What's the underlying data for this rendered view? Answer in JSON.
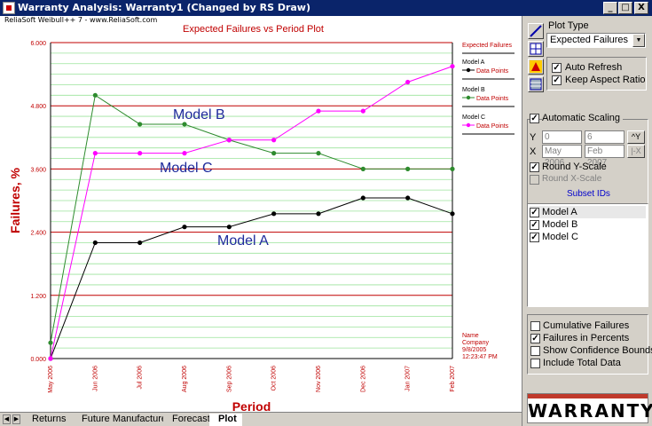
{
  "window": {
    "title": "Warranty Analysis: Warranty1 (Changed by RS Draw)",
    "minimize": "_",
    "maximize": "□",
    "close": "X"
  },
  "header_note": "ReliaSoft Weibull++ 7 - www.ReliaSoft.com",
  "chart_data": {
    "type": "line",
    "title": "Expected Failures vs Period Plot",
    "xlabel": "Period",
    "ylabel": "Failures, %",
    "categories": [
      "May 2006",
      "Jun 2006",
      "Jul 2006",
      "Aug 2006",
      "Sep 2006",
      "Oct 2006",
      "Nov 2006",
      "Dec 2006",
      "Jan 2007",
      "Feb 2007"
    ],
    "ylim": [
      0,
      6
    ],
    "yticks": [
      "0.000",
      "1.200",
      "2.400",
      "3.600",
      "4.800",
      "6.000"
    ],
    "series": [
      {
        "name": "Model A",
        "color": "#000000",
        "values": [
          0.0,
          2.2,
          2.2,
          2.5,
          2.5,
          2.75,
          2.75,
          3.05,
          3.05,
          2.75
        ]
      },
      {
        "name": "Model B",
        "color": "#2e8b2e",
        "values": [
          0.3,
          5.0,
          4.45,
          4.45,
          4.15,
          3.9,
          3.9,
          3.6,
          3.6,
          3.6
        ]
      },
      {
        "name": "Model C",
        "color": "#ff00ff",
        "values": [
          0.0,
          3.9,
          3.9,
          3.9,
          4.15,
          4.15,
          4.7,
          4.7,
          5.25,
          5.55
        ]
      }
    ],
    "annotations": [
      {
        "text": "Model B",
        "series": 1
      },
      {
        "text": "Model C",
        "series": 2
      },
      {
        "text": "Model A",
        "series": 0
      }
    ],
    "legend": {
      "title": "Expected Failures",
      "point_label": "Data Points",
      "placement": "right"
    },
    "stamp": [
      "Name",
      "Company",
      "9/8/2005",
      "12:23:47 PM"
    ],
    "grid": true
  },
  "panel": {
    "plot_type_label": "Plot Type",
    "plot_type_value": "Expected Failures",
    "auto_refresh": "Auto Refresh",
    "keep_aspect": "Keep Aspect Ratio",
    "automatic_scaling": "Automatic Scaling",
    "y_label": "Y",
    "y_from": "0",
    "y_to": "6",
    "x_label": "X",
    "x_from": "May 2006",
    "x_to": "Feb 2007",
    "round_y": "Round Y-Scale",
    "round_x": "Round X-Scale",
    "subset_title": "Subset IDs",
    "subsets": [
      "Model A",
      "Model B",
      "Model C"
    ],
    "cumulative": "Cumulative Failures",
    "percents": "Failures in Percents",
    "confidence": "Show Confidence Bounds",
    "total": "Include Total Data",
    "logo_text": "WARRANTY"
  },
  "tabs": [
    {
      "label": "Returns",
      "active": false
    },
    {
      "label": "Future Manufacture",
      "active": false
    },
    {
      "label": "Forecast",
      "active": false
    },
    {
      "label": "Plot",
      "active": true
    }
  ]
}
